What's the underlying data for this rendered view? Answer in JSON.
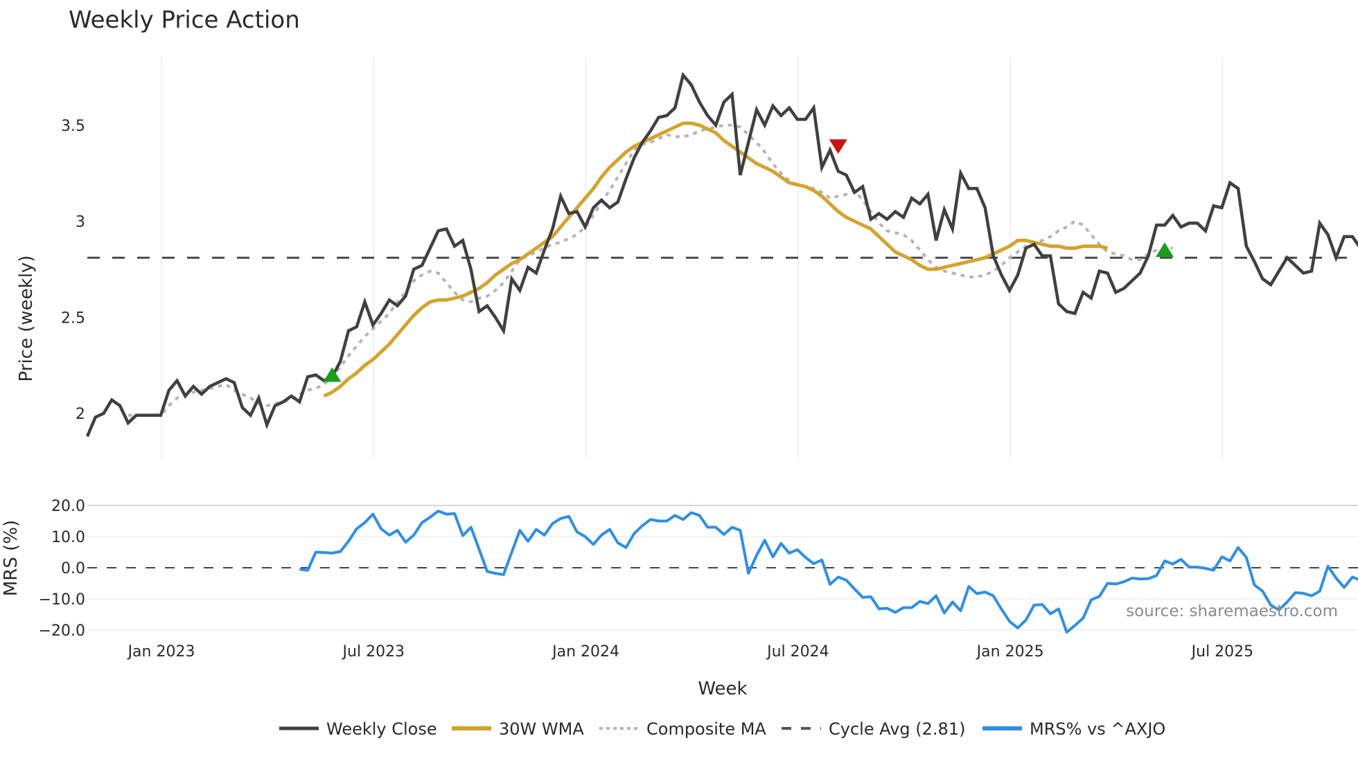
{
  "title": "Weekly Price Action",
  "source": "source: sharemaestro.com",
  "colors": {
    "close": "#404040",
    "wma": "#d4a32a",
    "composite": "#b5b5b5",
    "cycle": "#4a4a4a",
    "mrs": "#2e8fe6",
    "buy": "#1a9e1a",
    "sell": "#cc1111",
    "grid": "#e8edf2"
  },
  "legend": [
    {
      "label": "Weekly Close",
      "key": "close"
    },
    {
      "label": "30W WMA",
      "key": "wma"
    },
    {
      "label": "Composite MA",
      "key": "composite"
    },
    {
      "label": "Cycle Avg (2.81)",
      "key": "cycle"
    },
    {
      "label": "MRS% vs ^AXJO",
      "key": "mrs"
    }
  ],
  "chart_data": [
    {
      "type": "line",
      "title": "Weekly Price Action",
      "xlabel": "Week",
      "ylabel": "Price (weekly)",
      "ylim": [
        1.8,
        3.82
      ],
      "yticks": [
        2,
        2.5,
        3,
        3.5
      ],
      "ytick_labels": [
        "2",
        "2.5",
        "3",
        "3.5"
      ],
      "xtick_labels": [
        "Jan 2023",
        "Jul 2023",
        "Jan 2024",
        "Jul 2024",
        "Jan 2025",
        "Jul 2025"
      ],
      "x_start_week_index": -9,
      "grid": true,
      "cycle_avg": 2.81,
      "series": [
        {
          "name": "Weekly Close",
          "values": [
            1.88,
            1.98,
            2.0,
            2.07,
            2.04,
            1.95,
            1.99,
            1.99,
            1.99,
            1.99,
            2.12,
            2.17,
            2.09,
            2.14,
            2.1,
            2.14,
            2.16,
            2.18,
            2.16,
            2.03,
            1.99,
            2.08,
            1.94,
            2.04,
            2.06,
            2.09,
            2.06,
            2.19,
            2.2,
            2.17,
            2.19,
            2.27,
            2.43,
            2.45,
            2.58,
            2.46,
            2.52,
            2.59,
            2.56,
            2.61,
            2.75,
            2.77,
            2.86,
            2.95,
            2.96,
            2.87,
            2.9,
            2.75,
            2.53,
            2.56,
            2.5,
            2.43,
            2.7,
            2.64,
            2.76,
            2.73,
            2.85,
            2.96,
            3.13,
            3.04,
            3.05,
            2.97,
            3.07,
            3.11,
            3.07,
            3.1,
            3.22,
            3.33,
            3.41,
            3.47,
            3.54,
            3.55,
            3.59,
            3.76,
            3.71,
            3.62,
            3.55,
            3.5,
            3.62,
            3.66,
            3.24,
            3.41,
            3.58,
            3.5,
            3.6,
            3.55,
            3.59,
            3.53,
            3.53,
            3.59,
            3.28,
            3.37,
            3.26,
            3.24,
            3.15,
            3.18,
            3.01,
            3.04,
            3.01,
            3.05,
            3.02,
            3.12,
            3.09,
            3.14,
            2.9,
            3.06,
            2.96,
            3.25,
            3.17,
            3.17,
            3.07,
            2.82,
            2.72,
            2.64,
            2.72,
            2.86,
            2.88,
            2.82,
            2.82,
            2.57,
            2.53,
            2.52,
            2.63,
            2.6,
            2.74,
            2.73,
            2.63,
            2.65,
            2.69,
            2.73,
            2.82,
            2.98,
            2.98,
            3.03,
            2.97,
            2.99,
            2.99,
            2.95,
            3.08,
            3.07,
            3.2,
            3.17,
            2.87,
            2.79,
            2.7,
            2.67,
            2.74,
            2.81,
            2.77,
            2.73,
            2.74,
            2.99,
            2.93,
            2.81,
            2.92,
            2.92,
            2.86
          ]
        },
        {
          "name": "30W WMA",
          "start_index": 29,
          "values": [
            2.09,
            2.11,
            2.14,
            2.18,
            2.21,
            2.25,
            2.28,
            2.32,
            2.36,
            2.41,
            2.46,
            2.51,
            2.55,
            2.58,
            2.59,
            2.59,
            2.6,
            2.61,
            2.63,
            2.65,
            2.68,
            2.72,
            2.75,
            2.78,
            2.8,
            2.83,
            2.86,
            2.89,
            2.92,
            2.97,
            3.02,
            3.07,
            3.12,
            3.17,
            3.23,
            3.28,
            3.32,
            3.36,
            3.39,
            3.41,
            3.43,
            3.45,
            3.47,
            3.49,
            3.51,
            3.51,
            3.5,
            3.48,
            3.46,
            3.42,
            3.39,
            3.36,
            3.33,
            3.3,
            3.28,
            3.26,
            3.23,
            3.2,
            3.19,
            3.18,
            3.16,
            3.13,
            3.09,
            3.05,
            3.02,
            3.0,
            2.98,
            2.96,
            2.92,
            2.88,
            2.84,
            2.82,
            2.8,
            2.77,
            2.75,
            2.75,
            2.76,
            2.77,
            2.78,
            2.79,
            2.8,
            2.81,
            2.83,
            2.85,
            2.87,
            2.9,
            2.9,
            2.89,
            2.88,
            2.87,
            2.87,
            2.86,
            2.86,
            2.87,
            2.87,
            2.87,
            2.86
          ]
        },
        {
          "name": "Composite MA",
          "start_index": 5,
          "values": [
            1.99,
            1.99,
            1.99,
            1.99,
            1.99,
            2.04,
            2.08,
            2.1,
            2.11,
            2.12,
            2.13,
            2.14,
            2.15,
            2.12,
            2.1,
            2.08,
            2.05,
            2.04,
            2.05,
            2.06,
            2.07,
            2.1,
            2.12,
            2.13,
            2.15,
            2.19,
            2.24,
            2.3,
            2.35,
            2.4,
            2.44,
            2.48,
            2.52,
            2.58,
            2.63,
            2.69,
            2.72,
            2.74,
            2.73,
            2.68,
            2.63,
            2.59,
            2.58,
            2.6,
            2.61,
            2.64,
            2.68,
            2.74,
            2.8,
            2.82,
            2.84,
            2.86,
            2.88,
            2.89,
            2.91,
            2.93,
            2.97,
            3.03,
            3.1,
            3.16,
            3.23,
            3.3,
            3.37,
            3.4,
            3.41,
            3.43,
            3.45,
            3.44,
            3.44,
            3.45,
            3.47,
            3.48,
            3.49,
            3.5,
            3.5,
            3.49,
            3.45,
            3.41,
            3.36,
            3.3,
            3.25,
            3.21,
            3.19,
            3.18,
            3.17,
            3.15,
            3.12,
            3.13,
            3.14,
            3.16,
            3.11,
            3.05,
            2.99,
            2.95,
            2.94,
            2.93,
            2.9,
            2.85,
            2.8,
            2.76,
            2.74,
            2.73,
            2.72,
            2.71,
            2.71,
            2.72,
            2.74,
            2.77,
            2.81,
            2.84,
            2.87,
            2.89,
            2.9,
            2.92,
            2.95,
            2.97,
            3.0,
            2.98,
            2.93,
            2.88,
            2.84,
            2.83,
            2.82,
            2.8,
            2.8,
            2.83,
            2.85,
            2.86,
            2.86
          ]
        },
        {
          "name": "Cycle Avg (2.81)",
          "values": [
            2.81
          ]
        }
      ],
      "markers": [
        {
          "type": "buy",
          "shape": "triangle-up",
          "index": 30,
          "value": 2.2
        },
        {
          "type": "sell",
          "shape": "triangle-down",
          "index": 92,
          "value": 3.39
        },
        {
          "type": "buy",
          "shape": "triangle-up",
          "index": 132,
          "value": 2.85
        }
      ]
    },
    {
      "type": "line",
      "xlabel": "Week",
      "ylabel": "MRS (%)",
      "ylim": [
        -22,
        22
      ],
      "yticks": [
        20,
        10,
        0,
        -10,
        -20
      ],
      "ytick_labels": [
        "20.0",
        "10.0",
        "0.0",
        "−10.0",
        "−20.0"
      ],
      "series": [
        {
          "name": "MRS% vs ^AXJO",
          "start_index": 26,
          "values": [
            -0.5,
            -0.8,
            5,
            4.9,
            4.7,
            5.2,
            8.5,
            12.5,
            14.5,
            17.2,
            12.5,
            10.5,
            12,
            8.2,
            10.5,
            14.5,
            16.2,
            18.2,
            17.2,
            17.4,
            10.3,
            13,
            6,
            -1.2,
            -1.8,
            -2.2,
            5,
            12,
            8.5,
            12.3,
            10.5,
            14.2,
            15.8,
            16.5,
            11.5,
            10,
            7.5,
            10.5,
            12.3,
            8,
            6.5,
            11,
            13.5,
            15.5,
            15,
            15,
            16.8,
            15.5,
            17.7,
            16.8,
            13,
            13,
            10.7,
            13,
            12,
            -1.8,
            4,
            8.8,
            3.5,
            7.8,
            4.7,
            5.8,
            3.3,
            1.3,
            2.5,
            -5.3,
            -3,
            -4,
            -6.8,
            -9.5,
            -9.3,
            -13.2,
            -13,
            -14.3,
            -12.8,
            -12.8,
            -10.8,
            -11.5,
            -9,
            -14.5,
            -11,
            -13.8,
            -6,
            -8.3,
            -7.8,
            -9,
            -13.3,
            -17.2,
            -19.3,
            -16.8,
            -12,
            -11.8,
            -14.8,
            -13.2,
            -20.7,
            -18.5,
            -16.2,
            -10.3,
            -9.2,
            -5,
            -5.2,
            -4.5,
            -3.3,
            -3.6,
            -3.5,
            -2.5,
            2.2,
            1.2,
            2.7,
            0.2,
            0.2,
            -0.2,
            -0.8,
            3.5,
            2.2,
            6.5,
            3.3,
            -5.5,
            -7.5,
            -12,
            -13.5,
            -11,
            -8,
            -8.2,
            -9,
            -7.5,
            0.5,
            -3.3,
            -6.3,
            -3,
            -4,
            -5.5
          ]
        },
        {
          "name": "Zero line",
          "values": [
            0
          ]
        }
      ]
    }
  ]
}
